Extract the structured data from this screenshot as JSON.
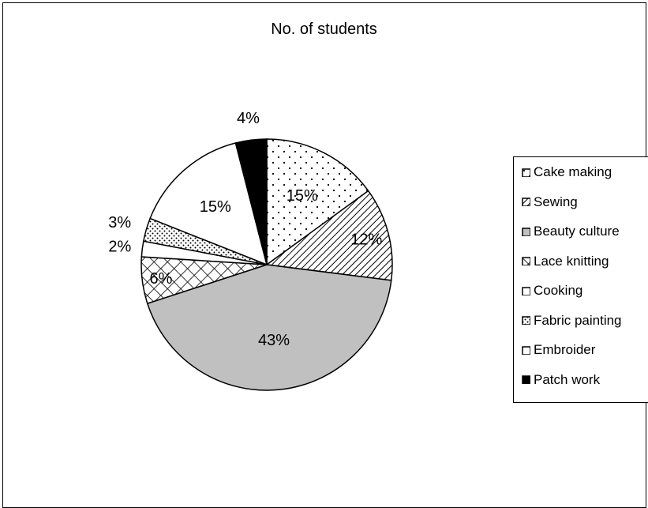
{
  "chart_data": {
    "type": "pie",
    "title": "No. of students",
    "legend_position": "right",
    "slices": [
      {
        "label": "Cake making",
        "value": 15,
        "value_label": "15%",
        "pattern": "dots-sparse"
      },
      {
        "label": "Sewing",
        "value": 12,
        "value_label": "12%",
        "pattern": "diagonal"
      },
      {
        "label": "Beauty culture",
        "value": 43,
        "value_label": "43%",
        "pattern": "solid-gray"
      },
      {
        "label": "Lace knitting",
        "value": 6,
        "value_label": "6%",
        "pattern": "crosshatch"
      },
      {
        "label": "Cooking",
        "value": 2,
        "value_label": "2%",
        "pattern": "white"
      },
      {
        "label": "Fabric painting",
        "value": 3,
        "value_label": "3%",
        "pattern": "dots-dense"
      },
      {
        "label": "Embroider",
        "value": 15,
        "value_label": "15%",
        "pattern": "white"
      },
      {
        "label": "Patch work",
        "value": 4,
        "value_label": "4%",
        "pattern": "black"
      }
    ],
    "colors": {
      "outline": "#000000",
      "gray_fill": "#c0c0c0",
      "black_fill": "#000000",
      "white_fill": "#ffffff"
    }
  }
}
